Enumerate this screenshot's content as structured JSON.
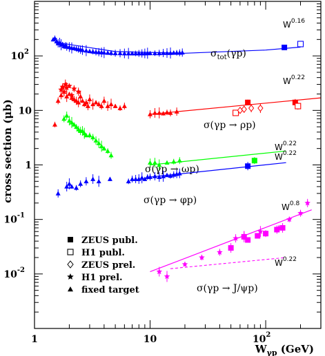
{
  "chart_data": {
    "type": "scatter",
    "xlabel": "W",
    "xlabel_sub": "γp",
    "xlabel_unit": " (GeV)",
    "ylabel": "cross section (μb)",
    "xscale": "log",
    "yscale": "log",
    "xlim": [
      1,
      300
    ],
    "ylim": [
      0.001,
      1000
    ],
    "x_ticks": [
      {
        "value": 1,
        "label": "1"
      },
      {
        "value": 10,
        "label": "10"
      },
      {
        "value": 100,
        "label": "10",
        "exp": "2"
      }
    ],
    "y_ticks": [
      {
        "value": 100,
        "label": "10",
        "exp": "2"
      },
      {
        "value": 10,
        "label": "10"
      },
      {
        "value": 1,
        "label": "1"
      },
      {
        "value": 0.1,
        "label": "10",
        "exp": "-1"
      },
      {
        "value": 0.01,
        "label": "10",
        "exp": "-2"
      }
    ],
    "legend": [
      {
        "marker": "filled-square",
        "label": "ZEUS publ."
      },
      {
        "marker": "open-square",
        "label": "H1 publ."
      },
      {
        "marker": "open-diamond",
        "label": "ZEUS prel."
      },
      {
        "marker": "star",
        "label": "H1 prel."
      },
      {
        "marker": "triangle",
        "label": "fixed target"
      }
    ],
    "legend_position": "bottom-left",
    "series": [
      {
        "process": "total",
        "label_parts": [
          "σ",
          "tot",
          "(γp)"
        ],
        "color": "#0000ff",
        "fit_power": "0.16",
        "fit": {
          "x": [
            1.5,
            5,
            20,
            100,
            200
          ],
          "y": [
            178,
            120,
            112,
            128,
            145
          ],
          "dashed": false
        },
        "fixed_target": {
          "x": [
            1.45,
            1.5,
            1.55,
            1.6,
            1.65,
            1.7,
            1.75,
            1.8,
            1.85,
            1.9,
            2.0,
            2.1,
            2.2,
            2.3,
            2.4,
            2.5,
            2.6,
            2.8,
            3.0,
            3.2,
            3.4,
            3.6,
            3.8,
            4.0,
            4.3,
            4.6,
            5.0,
            5.5,
            6.0,
            6.5,
            7.0,
            7.5,
            8.0,
            8.5,
            9.0,
            9.5,
            10,
            11,
            12,
            13,
            14,
            15,
            16,
            17,
            18,
            19
          ],
          "y": [
            200,
            210,
            185,
            170,
            175,
            160,
            165,
            150,
            155,
            148,
            145,
            140,
            138,
            135,
            132,
            130,
            128,
            125,
            122,
            120,
            118,
            117,
            116,
            115,
            114,
            113,
            112,
            112,
            111,
            111,
            111,
            111,
            111,
            111,
            111,
            112,
            112,
            112,
            112,
            113,
            113,
            113,
            114,
            114,
            114,
            115
          ]
        },
        "zeus_publ": {
          "x": [
            145
          ],
          "y": [
            143
          ]
        },
        "h1_publ": {
          "x": [
            200
          ],
          "y": [
            165
          ]
        }
      },
      {
        "process": "rho",
        "label": "σ(γp → ρp)",
        "color": "#ff0000",
        "fit_power": "0.22",
        "fit": {
          "x": [
            10,
            300
          ],
          "y": [
            8.5,
            17
          ],
          "dashed": false
        },
        "fixed_target": {
          "x": [
            1.5,
            1.6,
            1.7,
            1.8,
            1.9,
            2.0,
            2.1,
            2.2,
            2.3,
            2.4,
            2.5,
            2.6,
            2.7,
            2.8,
            2.9,
            3.0,
            3.2,
            3.4,
            3.6,
            3.8,
            4.0,
            4.3,
            4.6,
            5.0,
            5.5,
            6.0,
            10,
            11,
            12,
            13,
            14,
            15,
            17
          ],
          "y": [
            5.5,
            15,
            19,
            22,
            18,
            20,
            17,
            16,
            15,
            14,
            18,
            15,
            13,
            14,
            12,
            16,
            13,
            14,
            13,
            12,
            15,
            12,
            13,
            12,
            11,
            12,
            8.5,
            9,
            9,
            8.8,
            9.2,
            9,
            9.5
          ]
        },
        "h1_prel": {
          "x": [
            1.7,
            1.75,
            1.8,
            1.85,
            1.9,
            2.0,
            2.1,
            2.2,
            2.4
          ],
          "y": [
            24,
            27,
            22,
            30,
            26,
            28,
            19,
            25,
            22
          ]
        },
        "zeus_publ": {
          "x": [
            70,
            180
          ],
          "y": [
            14,
            14
          ]
        },
        "h1_publ": {
          "x": [
            55,
            190
          ],
          "y": [
            9,
            12
          ]
        },
        "zeus_prel": {
          "x": [
            60,
            65,
            75,
            90
          ],
          "y": [
            10,
            10.5,
            11,
            11
          ]
        }
      },
      {
        "process": "omega",
        "label": "σ(γp → ωp)",
        "color": "#00ff00",
        "fit_power": "0.22",
        "fit": {
          "x": [
            10,
            150
          ],
          "y": [
            1.0,
            1.8
          ],
          "dashed": false
        },
        "fixed_target": {
          "x": [
            1.8,
            1.9,
            2.0,
            2.1,
            2.2,
            2.3,
            2.4,
            2.5,
            2.6,
            2.7,
            2.8,
            3.0,
            3.2,
            3.4,
            3.6,
            3.8,
            4.0,
            4.3,
            4.6,
            10,
            11,
            12,
            14,
            16,
            18
          ],
          "y": [
            7,
            8,
            6.5,
            6,
            5.5,
            5,
            4.5,
            4.2,
            4.2,
            3.8,
            3.5,
            3.5,
            3.2,
            2.8,
            2.5,
            2.2,
            2.0,
            1.8,
            1.5,
            1.1,
            1.1,
            1.0,
            1.1,
            1.15,
            1.2
          ]
        },
        "zeus_publ": {
          "x": [
            80
          ],
          "y": [
            1.2
          ]
        }
      },
      {
        "process": "phi",
        "label": "σ(γp → φp)",
        "color": "#0000ff",
        "fit_power": "0.22",
        "fit": {
          "x": [
            10,
            150
          ],
          "y": [
            0.6,
            1.1
          ],
          "dashed": false
        },
        "fixed_target": {
          "x": [
            1.6,
            1.9,
            2.0,
            2.1,
            2.3,
            2.5,
            2.8,
            3.2,
            3.6,
            4.5,
            6.5,
            7,
            7.5,
            8,
            8.5,
            9,
            9.5,
            10,
            11,
            12,
            13,
            14,
            15,
            16,
            17,
            18
          ],
          "y": [
            0.3,
            0.4,
            0.45,
            0.4,
            0.38,
            0.45,
            0.5,
            0.55,
            0.5,
            0.55,
            0.5,
            0.55,
            0.55,
            0.55,
            0.58,
            0.55,
            0.6,
            0.6,
            0.62,
            0.6,
            0.62,
            0.65,
            0.63,
            0.66,
            0.68,
            0.7
          ]
        },
        "zeus_publ": {
          "x": [
            70
          ],
          "y": [
            0.95
          ]
        }
      },
      {
        "process": "jpsi",
        "label": "σ(γp → J/ψp)",
        "color": "#ff00ff",
        "fit_power": "0.8",
        "fit": {
          "x": [
            10,
            250
          ],
          "y": [
            0.011,
            0.15
          ],
          "dashed": false
        },
        "fit_alt": {
          "x": [
            15,
            150
          ],
          "y": [
            0.0125,
            0.02
          ],
          "power": "0.22",
          "dashed": true
        },
        "zeus_publ": {
          "x": [
            50,
            65,
            70,
            85,
            100,
            125,
            140
          ],
          "y": [
            0.03,
            0.048,
            0.042,
            0.05,
            0.055,
            0.065,
            0.07
          ]
        },
        "h1_prel": {
          "x": [
            12,
            14,
            20,
            28,
            40,
            55,
            65,
            90,
            130,
            160,
            200,
            230
          ],
          "y": [
            0.011,
            0.009,
            0.015,
            0.02,
            0.025,
            0.045,
            0.05,
            0.06,
            0.07,
            0.1,
            0.13,
            0.2
          ]
        }
      }
    ]
  }
}
